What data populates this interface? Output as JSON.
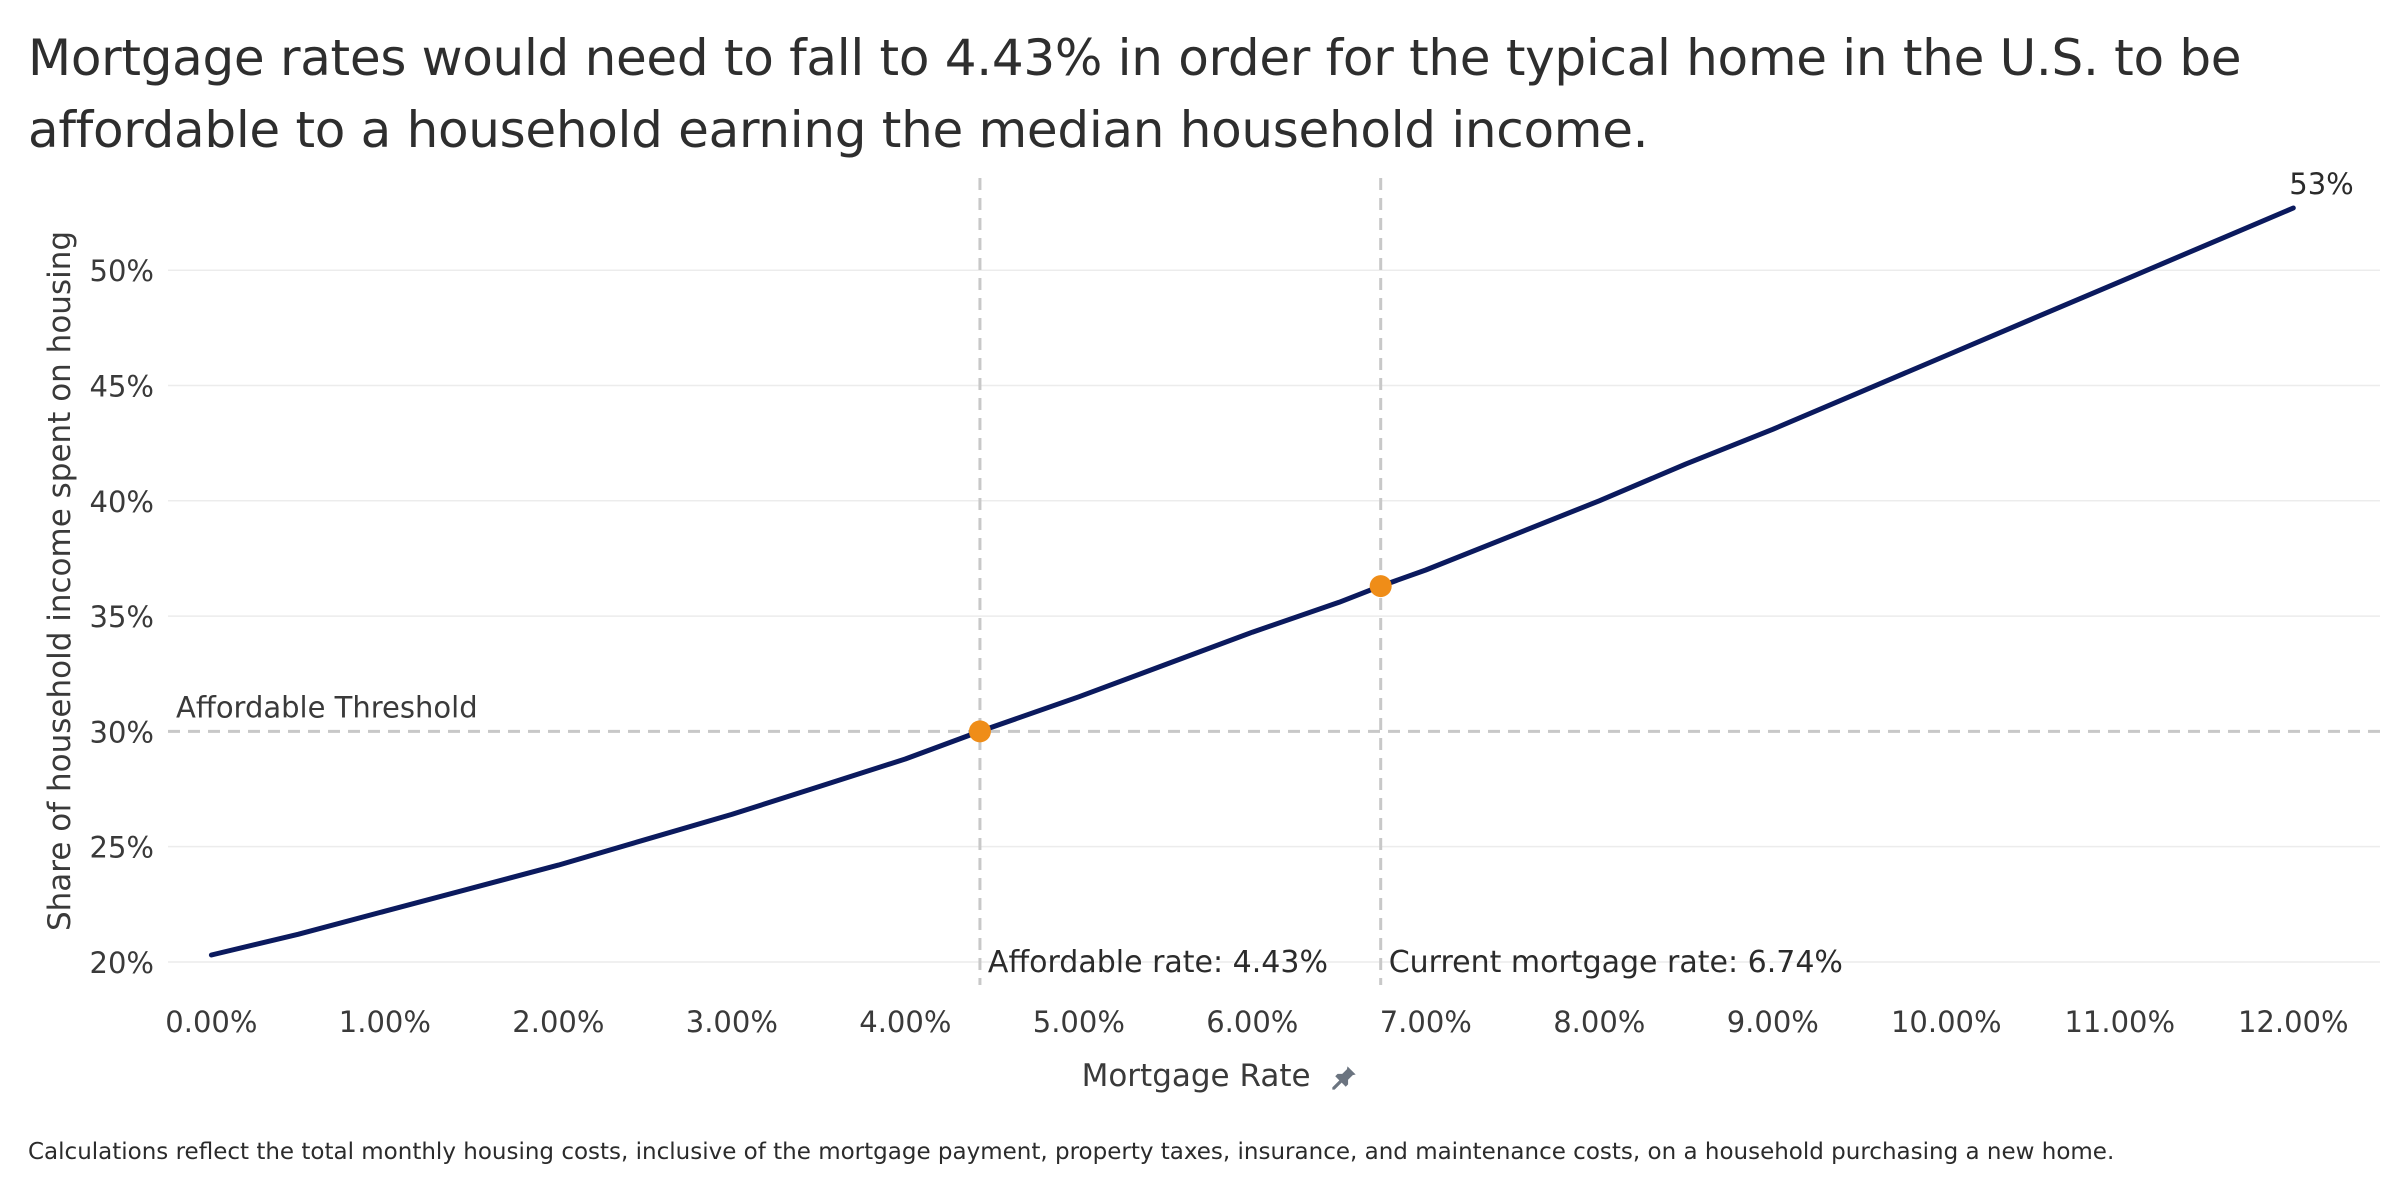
{
  "title": "Mortgage rates would need to fall to 4.43% in order for the typical home in the U.S. to be affordable to a household earning the median household income.",
  "footnote": "Calculations reflect the total monthly housing costs, inclusive of the mortgage payment, property taxes, insurance, and maintenance costs, on a household purchasing a new home.",
  "icons": {
    "xlabel_icon": "pin-icon"
  },
  "colors": {
    "line": "#0b1a5e",
    "marker": "#ef8d18",
    "reference": "#c8c8c8",
    "grid": "#ececec"
  },
  "chart_data": {
    "type": "line",
    "title": "Mortgage rates would need to fall to 4.43% in order for the typical home in the U.S. to be affordable to a household earning the median household income.",
    "xlabel": "Mortgage Rate",
    "ylabel": "Share of household income spent on housing",
    "x_ticks": [
      0,
      1,
      2,
      3,
      4,
      5,
      6,
      7,
      8,
      9,
      10,
      11,
      12
    ],
    "x_tick_labels": [
      "0.00%",
      "1.00%",
      "2.00%",
      "3.00%",
      "4.00%",
      "5.00%",
      "6.00%",
      "7.00%",
      "8.00%",
      "9.00%",
      "10.00%",
      "11.00%",
      "12.00%"
    ],
    "y_ticks": [
      20,
      25,
      30,
      35,
      40,
      45,
      50
    ],
    "y_tick_labels": [
      "20%",
      "25%",
      "30%",
      "35%",
      "40%",
      "45%",
      "50%"
    ],
    "xlim": [
      -0.25,
      12.5
    ],
    "ylim": [
      19,
      54
    ],
    "grid": "horizontal",
    "series": [
      {
        "x": [
          0,
          0.5,
          1,
          1.5,
          2,
          2.5,
          3,
          3.5,
          4,
          4.43,
          5,
          5.5,
          6,
          6.5,
          6.74,
          7,
          7.5,
          8,
          8.5,
          9,
          9.5,
          10,
          10.5,
          11,
          11.5,
          12
        ],
        "y": [
          20.3,
          21.2,
          22.2,
          23.2,
          24.2,
          25.3,
          26.4,
          27.6,
          28.8,
          30.0,
          31.5,
          32.9,
          34.3,
          35.6,
          36.3,
          37.0,
          38.5,
          40.0,
          41.6,
          43.1,
          44.7,
          46.3,
          47.9,
          49.5,
          51.1,
          52.7
        ]
      }
    ],
    "end_label": "53%",
    "markers": [
      {
        "x": 4.43,
        "y": 30.0
      },
      {
        "x": 6.74,
        "y": 36.3
      }
    ],
    "threshold": {
      "y": 30,
      "label": "Affordable Threshold"
    },
    "reference_lines": [
      {
        "x": 4.43,
        "label": "Affordable rate: 4.43%"
      },
      {
        "x": 6.74,
        "label": "Current mortgage rate: 6.74%"
      }
    ]
  }
}
